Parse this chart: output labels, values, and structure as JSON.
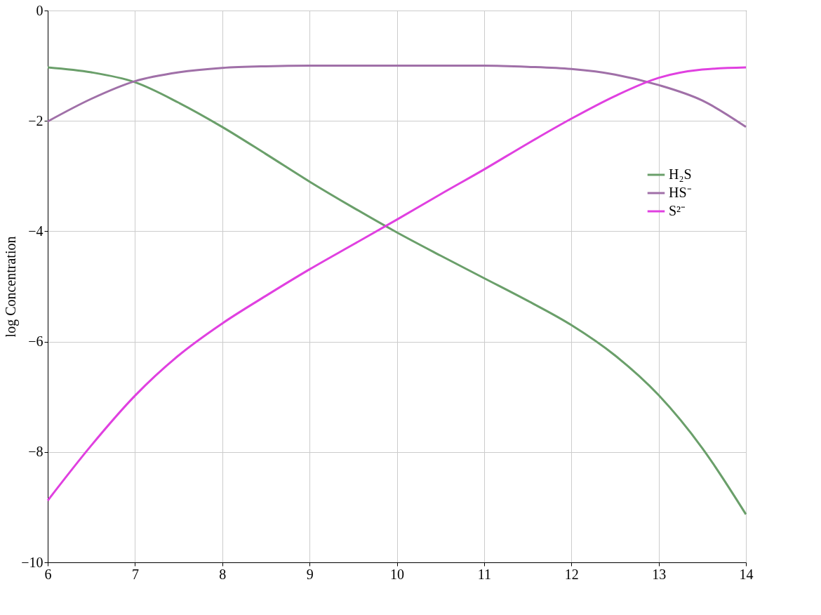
{
  "chart_data": {
    "type": "line",
    "ylabel": "log Concentration",
    "x": [
      6,
      6.5,
      7,
      7.5,
      8,
      8.5,
      9,
      9.5,
      10,
      10.5,
      11,
      11.5,
      12,
      12.5,
      13,
      13.5,
      14
    ],
    "series": [
      {
        "name": "H₂S",
        "color": "#6a9f6a",
        "values": [
          -1.03,
          -1.12,
          -1.3,
          -1.67,
          -2.11,
          -2.6,
          -3.1,
          -3.57,
          -4.02,
          -4.44,
          -4.85,
          -5.26,
          -5.7,
          -6.25,
          -6.97,
          -7.93,
          -9.13
        ]
      },
      {
        "name": "HS⁻",
        "color": "#a070a8",
        "values": [
          -2.01,
          -1.6,
          -1.28,
          -1.12,
          -1.04,
          -1.01,
          -1.0,
          -1.0,
          -1.0,
          -1.0,
          -1.0,
          -1.02,
          -1.06,
          -1.16,
          -1.35,
          -1.63,
          -2.11
        ]
      },
      {
        "name": "S²⁻",
        "color": "#e040e0",
        "values": [
          -8.88,
          -7.88,
          -6.98,
          -6.25,
          -5.67,
          -5.17,
          -4.69,
          -4.24,
          -3.79,
          -3.33,
          -2.88,
          -2.41,
          -1.96,
          -1.55,
          -1.22,
          -1.07,
          -1.03
        ]
      }
    ],
    "xlim": [
      6,
      14
    ],
    "xticks": [
      6,
      7,
      8,
      9,
      10,
      11,
      12,
      13,
      14
    ],
    "ylim": [
      -10,
      0
    ],
    "yticks": [
      -10,
      -8,
      -6,
      -4,
      -2,
      0
    ],
    "grid": true,
    "legend": "right",
    "marker": "none",
    "line_style": "solid"
  }
}
